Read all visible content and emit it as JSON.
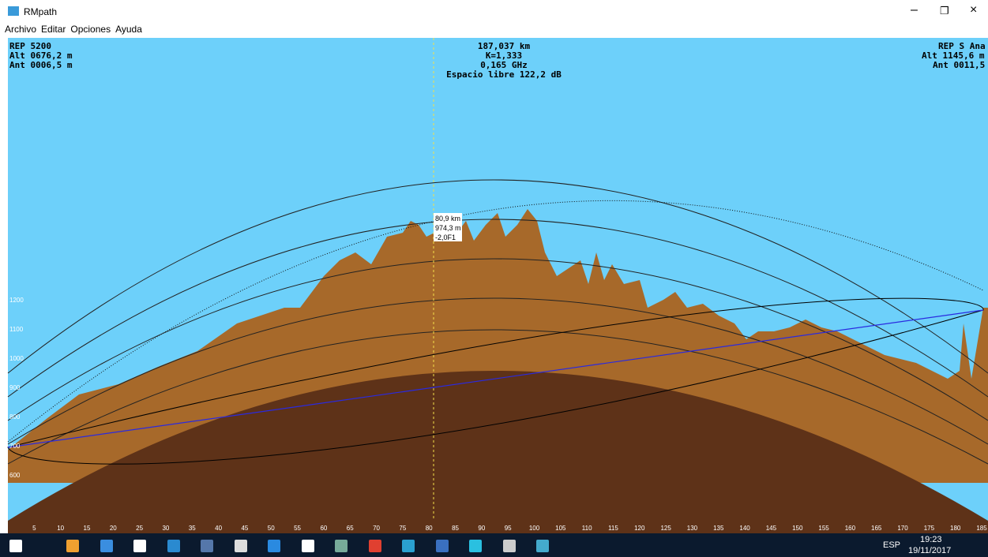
{
  "window": {
    "title": "RMpath",
    "menu": [
      "Archivo",
      "Editar",
      "Opciones",
      "Ayuda"
    ]
  },
  "profile": {
    "left_site": [
      "REP 5200",
      "Alt 0676,2 m",
      "Ant 0006,5 m"
    ],
    "center_info": [
      "187,037 km",
      "K=1,333",
      "0,165 GHz",
      "Espacio libre 122,2 dB"
    ],
    "right_site": [
      "REP S Ana",
      "Alt 1145,6 m",
      "Ant 0011,5 m"
    ],
    "cursor": [
      "80,9 km",
      "974,3 m",
      "-2,0F1"
    ],
    "y_labels": [
      1200,
      1100,
      1000,
      900,
      800,
      700,
      600
    ],
    "x_labels": [
      5,
      10,
      15,
      20,
      25,
      30,
      35,
      40,
      45,
      50,
      55,
      60,
      65,
      70,
      75,
      80,
      85,
      90,
      95,
      100,
      105,
      110,
      115,
      120,
      125,
      130,
      135,
      140,
      145,
      150,
      155,
      160,
      165,
      170,
      175,
      180,
      185
    ]
  },
  "taskbar": {
    "language": "ESP",
    "time": "19:23",
    "date": "19/11/2017"
  }
}
